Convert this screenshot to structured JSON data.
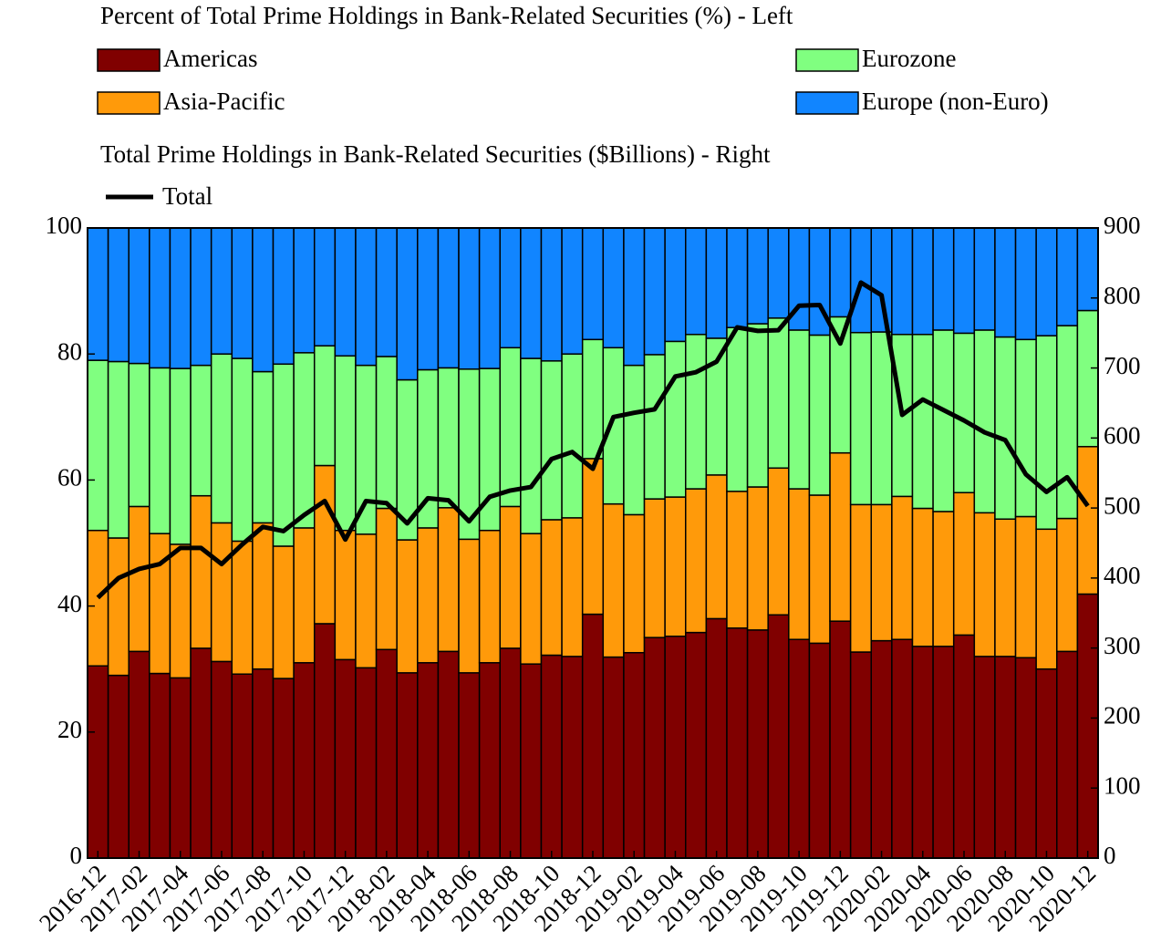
{
  "chart_data": {
    "type": "bar",
    "stacked": true,
    "left_legend_title": "Percent of Total Prime Holdings in Bank-Related Securities (%) - Left",
    "right_legend_title": "Total Prime Holdings in Bank-Related Securities ($Billions) - Right",
    "categories": [
      "2016-12",
      null,
      "2017-02",
      null,
      "2017-04",
      null,
      "2017-06",
      null,
      "2017-08",
      null,
      "2017-10",
      null,
      "2017-12",
      null,
      "2018-02",
      null,
      "2018-04",
      null,
      "2018-06",
      null,
      "2018-08",
      null,
      "2018-10",
      null,
      "2018-12",
      null,
      "2019-02",
      null,
      "2019-04",
      null,
      "2019-06",
      null,
      "2019-08",
      null,
      "2019-10",
      null,
      "2019-12",
      null,
      "2020-02",
      null,
      "2020-04",
      null,
      "2020-06",
      null,
      "2020-08",
      null,
      "2020-10",
      null,
      "2020-12"
    ],
    "ylim": [
      0,
      100
    ],
    "yticks": [
      0,
      20,
      40,
      60,
      80,
      100
    ],
    "y2lim": [
      0,
      900
    ],
    "y2ticks": [
      0,
      100,
      200,
      300,
      400,
      500,
      600,
      700,
      800,
      900
    ],
    "series": [
      {
        "name": "Americas",
        "color": "#800000",
        "values": [
          30.5,
          29,
          32.8,
          29.3,
          28.6,
          33.3,
          31.2,
          29.2,
          30,
          28.5,
          31,
          37.2,
          31.5,
          30.2,
          33.1,
          29.4,
          31,
          32.8,
          29.4,
          31,
          33.3,
          30.8,
          32.2,
          32,
          38.7,
          31.9,
          32.6,
          35,
          35.2,
          35.8,
          38,
          36.5,
          36.2,
          38.6,
          34.7,
          34.1,
          37.6,
          32.7,
          34.5,
          34.7,
          33.6,
          33.6,
          35.4,
          32,
          32,
          31.8,
          30,
          32.8,
          41.9
        ]
      },
      {
        "name": "Asia-Pacific",
        "color": "#ff9a0a",
        "values": [
          21.5,
          21.8,
          23,
          22.2,
          21.2,
          24.2,
          22,
          21.1,
          23.2,
          21,
          21.4,
          25.1,
          20.5,
          21.2,
          22.4,
          21.1,
          21.4,
          22.8,
          21.2,
          21,
          22.5,
          20.7,
          21.5,
          22,
          24.7,
          24.3,
          21.9,
          22,
          22.1,
          22.8,
          22.8,
          21.7,
          22.7,
          23.3,
          23.9,
          23.5,
          26.7,
          23.4,
          21.6,
          22.7,
          21.9,
          21.4,
          22.6,
          22.8,
          21.8,
          22.4,
          22.2,
          21.1,
          23.4
        ]
      },
      {
        "name": "Eurozone",
        "color": "#80ff80",
        "values": [
          27,
          28,
          22.7,
          26.3,
          27.9,
          20.7,
          26.8,
          29,
          24,
          28.9,
          27.8,
          19,
          27.7,
          26.8,
          24.1,
          25.4,
          25.1,
          22.2,
          27,
          25.7,
          25.2,
          27.8,
          25.2,
          26,
          18.9,
          24.8,
          23.7,
          22.9,
          24.7,
          24.5,
          21.7,
          26,
          25.9,
          23.8,
          25.2,
          25.4,
          21.6,
          27.3,
          27.4,
          25.7,
          27.6,
          28.8,
          25.3,
          29,
          28.9,
          28.1,
          30.7,
          30.6,
          21.6
        ]
      },
      {
        "name": "Europe (non-Euro)",
        "color": "#1185ff",
        "values": [
          21,
          21.2,
          21.5,
          22.2,
          22.3,
          21.8,
          20,
          20.7,
          22.8,
          21.6,
          19.8,
          18.7,
          20.3,
          21.8,
          20.4,
          24.1,
          22.5,
          22.2,
          22.4,
          22.3,
          19,
          20.7,
          21.1,
          20,
          17.7,
          19,
          21.8,
          20.1,
          18,
          16.9,
          17.5,
          15.8,
          15.2,
          14.3,
          16.2,
          17,
          14.1,
          16.6,
          16.5,
          16.9,
          16.9,
          16.2,
          16.7,
          16.2,
          17.3,
          17.7,
          17.1,
          15.5,
          13.1
        ]
      },
      {
        "name": "Total",
        "color": "#000000",
        "type": "line",
        "axis": "y2",
        "values": [
          372,
          400,
          413,
          420,
          443,
          443,
          420,
          448,
          473,
          467,
          490,
          510,
          455,
          510,
          507,
          478,
          514,
          511,
          481,
          516,
          525,
          530,
          570,
          580,
          556,
          630,
          636,
          641,
          688,
          694,
          709,
          758,
          753,
          754,
          789,
          790,
          735,
          822,
          804,
          633,
          655,
          640,
          625,
          608,
          597,
          548,
          523,
          544,
          503
        ]
      }
    ]
  }
}
